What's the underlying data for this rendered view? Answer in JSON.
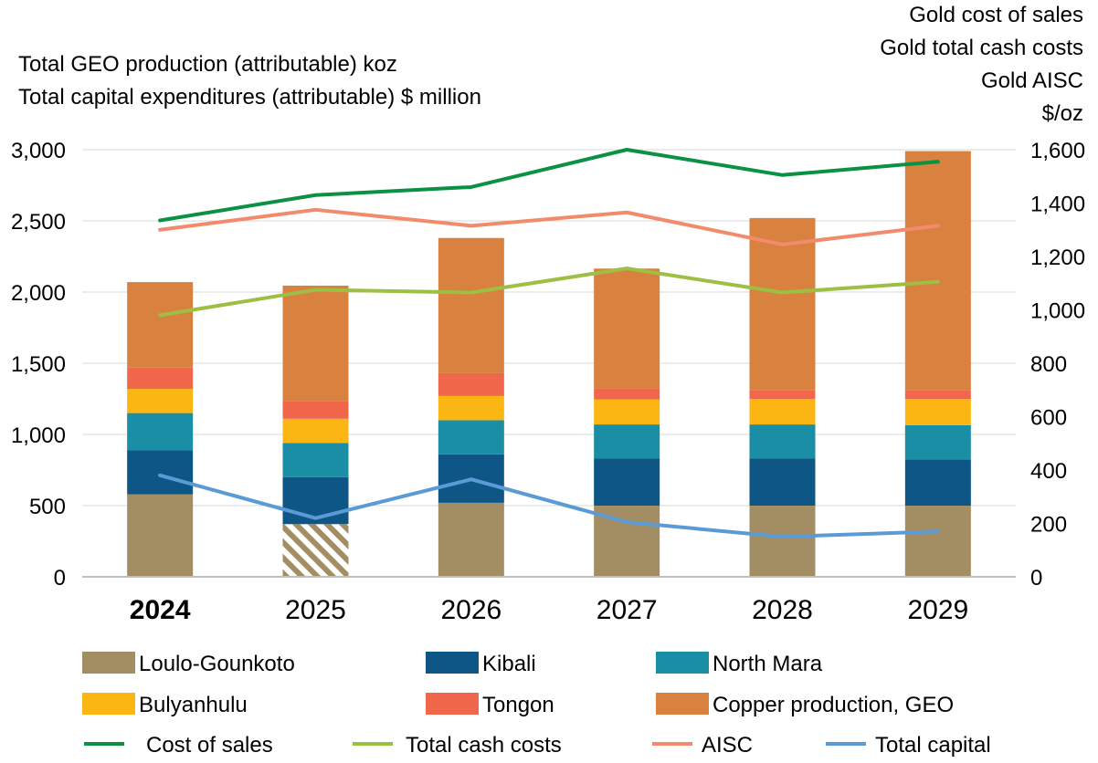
{
  "chart_data": {
    "type": "bar",
    "stacked": true,
    "categories": [
      "2024",
      "2025",
      "2026",
      "2027",
      "2028",
      "2029"
    ],
    "highlight_category": "2024",
    "left_title_lines": [
      "Total GEO production (attributable) koz",
      "Total capital expenditures (attributable) $ million"
    ],
    "right_title_lines": [
      "Gold cost of sales",
      "Gold total cash costs",
      "Gold AISC",
      "$/oz"
    ],
    "y_left": {
      "min": 0,
      "max": 3000,
      "step": 500,
      "tick_labels": [
        "0",
        "500",
        "1,000",
        "1,500",
        "2,000",
        "2,500",
        "3,000"
      ]
    },
    "y_right": {
      "min": 0,
      "max": 1600,
      "step": 200,
      "tick_labels": [
        "0",
        "200",
        "400",
        "600",
        "800",
        "1,000",
        "1,200",
        "1,400",
        "1,600"
      ]
    },
    "series": [
      {
        "name": "Loulo-Gounkoto",
        "kind": "bar",
        "color": "#a38e63",
        "values": [
          580,
          370,
          520,
          500,
          500,
          500
        ],
        "hatched_index": 1
      },
      {
        "name": "Kibali",
        "kind": "bar",
        "color": "#0d5686",
        "values": [
          310,
          330,
          340,
          330,
          330,
          325
        ]
      },
      {
        "name": "North Mara",
        "kind": "bar",
        "color": "#1a8ea4",
        "values": [
          260,
          240,
          240,
          240,
          240,
          240
        ]
      },
      {
        "name": "Bulyanhulu",
        "kind": "bar",
        "color": "#fbb614",
        "values": [
          170,
          170,
          170,
          175,
          180,
          185
        ]
      },
      {
        "name": "Tongon",
        "kind": "bar",
        "color": "#f0674b",
        "values": [
          150,
          125,
          160,
          80,
          60,
          60
        ]
      },
      {
        "name": "Copper production, GEO",
        "kind": "bar",
        "color": "#d9813f",
        "values": [
          600,
          810,
          950,
          840,
          1210,
          1680
        ]
      },
      {
        "name": "Cost of sales",
        "kind": "line",
        "axis": "right",
        "color": "#0a9144",
        "values": [
          1335,
          1430,
          1460,
          1600,
          1505,
          1555
        ]
      },
      {
        "name": "Total cash costs",
        "kind": "line",
        "axis": "right",
        "color": "#9cbf44",
        "values": [
          980,
          1075,
          1065,
          1155,
          1065,
          1105
        ]
      },
      {
        "name": "AISC",
        "kind": "line",
        "axis": "right",
        "color": "#f28b6c",
        "values": [
          1300,
          1375,
          1315,
          1365,
          1245,
          1315
        ]
      },
      {
        "name": "Total capital",
        "kind": "line",
        "axis": "right",
        "color": "#5b9bd5",
        "values": [
          380,
          220,
          365,
          205,
          150,
          170
        ]
      }
    ]
  }
}
